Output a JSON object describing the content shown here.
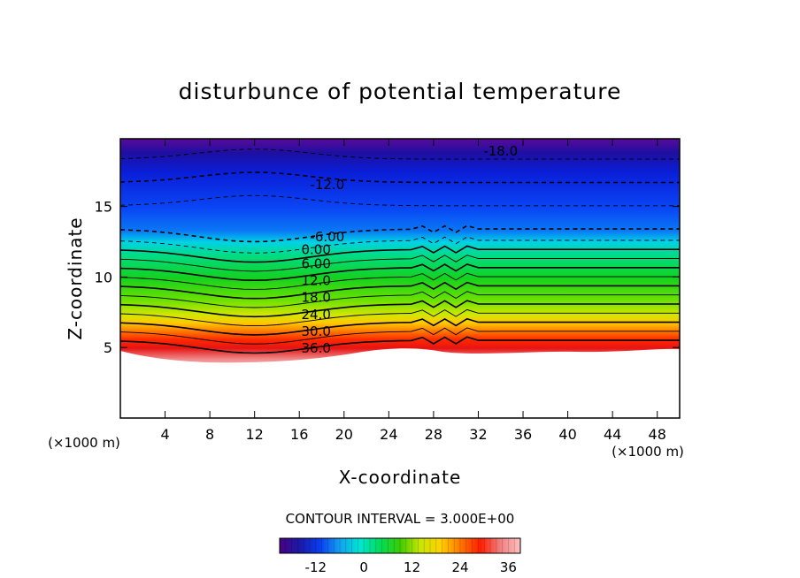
{
  "chart_data": {
    "type": "contour",
    "title": "disturbunce of potential temperature",
    "xlabel": "X-coordinate",
    "ylabel": "Z-coordinate",
    "x_units": "(×1000 m)",
    "y_units": "(×1000 m)",
    "xlim": [
      0,
      50
    ],
    "ylim": [
      0,
      19.8
    ],
    "xticks": [
      "4",
      "8",
      "12",
      "16",
      "20",
      "24",
      "28",
      "32",
      "36",
      "40",
      "44",
      "48"
    ],
    "yticks": [
      "5",
      "10",
      "15"
    ],
    "contour_interval_text": "CONTOUR INTERVAL = 3.000E+00",
    "contour_interval": 3,
    "value_range": [
      -21,
      39
    ],
    "terrain_top_z": 4.8,
    "contour_labels": [
      {
        "text": "-18.0",
        "value": -18,
        "x": 34,
        "z": 19.0
      },
      {
        "text": "-12.0",
        "value": -12,
        "x": 18.5,
        "z": 16.6
      },
      {
        "text": "-6.00",
        "value": -6,
        "x": 18.5,
        "z": 12.9
      },
      {
        "text": "0.00",
        "value": 0,
        "x": 17.5,
        "z": 12.0
      },
      {
        "text": "6.00",
        "value": 6,
        "x": 17.5,
        "z": 11.0
      },
      {
        "text": "12.0",
        "value": 12,
        "x": 17.5,
        "z": 9.8
      },
      {
        "text": "18.0",
        "value": 18,
        "x": 17.5,
        "z": 8.6
      },
      {
        "text": "24.0",
        "value": 24,
        "x": 17.5,
        "z": 7.4
      },
      {
        "text": "30.0",
        "value": 30,
        "x": 17.5,
        "z": 6.2
      },
      {
        "text": "36.0",
        "value": 36,
        "x": 17.5,
        "z": 5.0
      }
    ],
    "colorbar": {
      "ticks": [
        "-12",
        "0",
        "12",
        "24",
        "36"
      ],
      "colors": [
        "#4b0082",
        "#1a1aa8",
        "#0a3cf0",
        "#14a0f0",
        "#00e6d2",
        "#00dc5a",
        "#3ccc00",
        "#c8e600",
        "#ffd200",
        "#ff7800",
        "#ff1e00",
        "#f08080",
        "#ffc0c0"
      ]
    }
  }
}
